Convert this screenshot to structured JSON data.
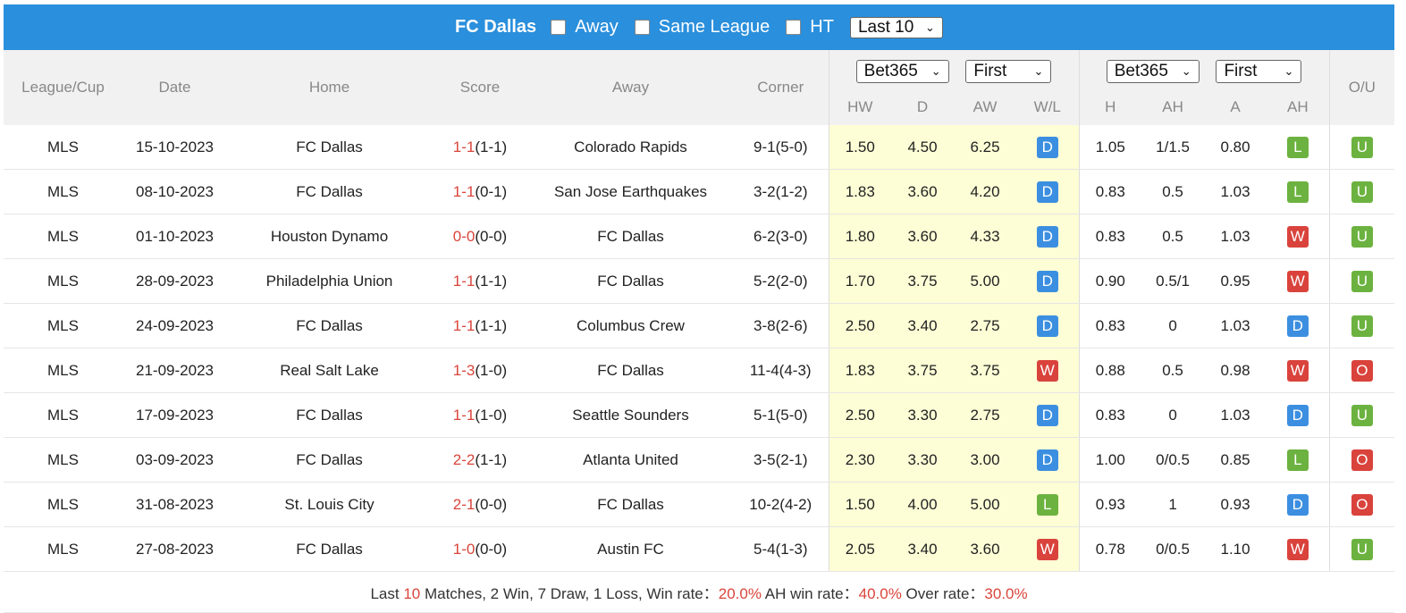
{
  "header": {
    "team": "FC Dallas",
    "away_label": "Away",
    "same_league_label": "Same League",
    "ht_label": "HT",
    "last_select": "Last 10"
  },
  "columns": {
    "league": "League/Cup",
    "date": "Date",
    "home": "Home",
    "score": "Score",
    "away": "Away",
    "corner": "Corner",
    "ou": "O/U",
    "odds1_bookmaker": "Bet365",
    "odds1_type": "First",
    "odds2_bookmaker": "Bet365",
    "odds2_type": "First",
    "hw": "HW",
    "d": "D",
    "aw": "AW",
    "wl": "W/L",
    "h": "H",
    "ah": "AH",
    "a": "A",
    "ah_result": "AH"
  },
  "rows": [
    {
      "league": "MLS",
      "date": "15-10-2023",
      "home": "FC Dallas",
      "home_hl": true,
      "score": "1-1",
      "ht": "(1-1)",
      "away": "Colorado Rapids",
      "away_hl": false,
      "corner": "9-1(5-0)",
      "hw": "1.50",
      "d": "4.50",
      "aw": "6.25",
      "wl": "D",
      "h": "1.05",
      "ah": "1/1.5",
      "a": "0.80",
      "ahr": "L",
      "ou": "U"
    },
    {
      "league": "MLS",
      "date": "08-10-2023",
      "home": "FC Dallas",
      "home_hl": true,
      "score": "1-1",
      "ht": "(0-1)",
      "away": "San Jose Earthquakes",
      "away_hl": false,
      "corner": "3-2(1-2)",
      "hw": "1.83",
      "d": "3.60",
      "aw": "4.20",
      "wl": "D",
      "h": "0.83",
      "ah": "0.5",
      "a": "1.03",
      "ahr": "L",
      "ou": "U"
    },
    {
      "league": "MLS",
      "date": "01-10-2023",
      "home": "Houston Dynamo",
      "home_hl": false,
      "score": "0-0",
      "ht": "(0-0)",
      "away": "FC Dallas",
      "away_hl": true,
      "corner": "6-2(3-0)",
      "hw": "1.80",
      "d": "3.60",
      "aw": "4.33",
      "wl": "D",
      "h": "0.83",
      "ah": "0.5",
      "a": "1.03",
      "ahr": "W",
      "ou": "U"
    },
    {
      "league": "MLS",
      "date": "28-09-2023",
      "home": "Philadelphia Union",
      "home_hl": false,
      "score": "1-1",
      "ht": "(1-1)",
      "away": "FC Dallas",
      "away_hl": true,
      "corner": "5-2(2-0)",
      "hw": "1.70",
      "d": "3.75",
      "aw": "5.00",
      "wl": "D",
      "h": "0.90",
      "ah": "0.5/1",
      "a": "0.95",
      "ahr": "W",
      "ou": "U"
    },
    {
      "league": "MLS",
      "date": "24-09-2023",
      "home": "FC Dallas",
      "home_hl": true,
      "score": "1-1",
      "ht": "(1-1)",
      "away": "Columbus Crew",
      "away_hl": false,
      "corner": "3-8(2-6)",
      "hw": "2.50",
      "d": "3.40",
      "aw": "2.75",
      "wl": "D",
      "h": "0.83",
      "ah": "0",
      "a": "1.03",
      "ahr": "D",
      "ou": "U"
    },
    {
      "league": "MLS",
      "date": "21-09-2023",
      "home": "Real Salt Lake",
      "home_hl": false,
      "score": "1-3",
      "ht": "(1-0)",
      "away": "FC Dallas",
      "away_hl": true,
      "corner": "11-4(4-3)",
      "hw": "1.83",
      "d": "3.75",
      "aw": "3.75",
      "wl": "W",
      "h": "0.88",
      "ah": "0.5",
      "a": "0.98",
      "ahr": "W",
      "ou": "O"
    },
    {
      "league": "MLS",
      "date": "17-09-2023",
      "home": "FC Dallas",
      "home_hl": true,
      "score": "1-1",
      "ht": "(1-0)",
      "away": "Seattle Sounders",
      "away_hl": false,
      "corner": "5-1(5-0)",
      "hw": "2.50",
      "d": "3.30",
      "aw": "2.75",
      "wl": "D",
      "h": "0.83",
      "ah": "0",
      "a": "1.03",
      "ahr": "D",
      "ou": "U"
    },
    {
      "league": "MLS",
      "date": "03-09-2023",
      "home": "FC Dallas",
      "home_hl": true,
      "score": "2-2",
      "ht": "(1-1)",
      "away": "Atlanta United",
      "away_hl": false,
      "corner": "3-5(2-1)",
      "hw": "2.30",
      "d": "3.30",
      "aw": "3.00",
      "wl": "D",
      "h": "1.00",
      "ah": "0/0.5",
      "a": "0.85",
      "ahr": "L",
      "ou": "O"
    },
    {
      "league": "MLS",
      "date": "31-08-2023",
      "home": "St. Louis City",
      "home_hl": false,
      "score": "2-1",
      "ht": "(0-0)",
      "away": "FC Dallas",
      "away_hl": true,
      "corner": "10-2(4-2)",
      "hw": "1.50",
      "d": "4.00",
      "aw": "5.00",
      "wl": "L",
      "h": "0.93",
      "ah": "1",
      "a": "0.93",
      "ahr": "D",
      "ou": "O"
    },
    {
      "league": "MLS",
      "date": "27-08-2023",
      "home": "FC Dallas",
      "home_hl": true,
      "score": "1-0",
      "ht": "(0-0)",
      "away": "Austin FC",
      "away_hl": false,
      "corner": "5-4(1-3)",
      "hw": "2.05",
      "d": "3.40",
      "aw": "3.60",
      "wl": "W",
      "h": "0.78",
      "ah": "0/0.5",
      "a": "1.10",
      "ahr": "W",
      "ou": "U"
    }
  ],
  "summary": {
    "p1": "Last ",
    "count": "10",
    "p2": " Matches, 2 Win, 7 Draw, 1 Loss, Win rate：",
    "win_rate": "20.0%",
    "p3": " AH win rate：",
    "ah_rate": "40.0%",
    "p4": " Over rate：",
    "over_rate": "30.0%"
  },
  "colors": {
    "header_bg": "#2a8fdc",
    "link": "#3e8ed0",
    "score": "#d9453b",
    "badge_draw": "#3c8fe0",
    "badge_win": "#d9433c",
    "badge_loss": "#6cb240",
    "odds_bg": "#fdfdd6"
  }
}
